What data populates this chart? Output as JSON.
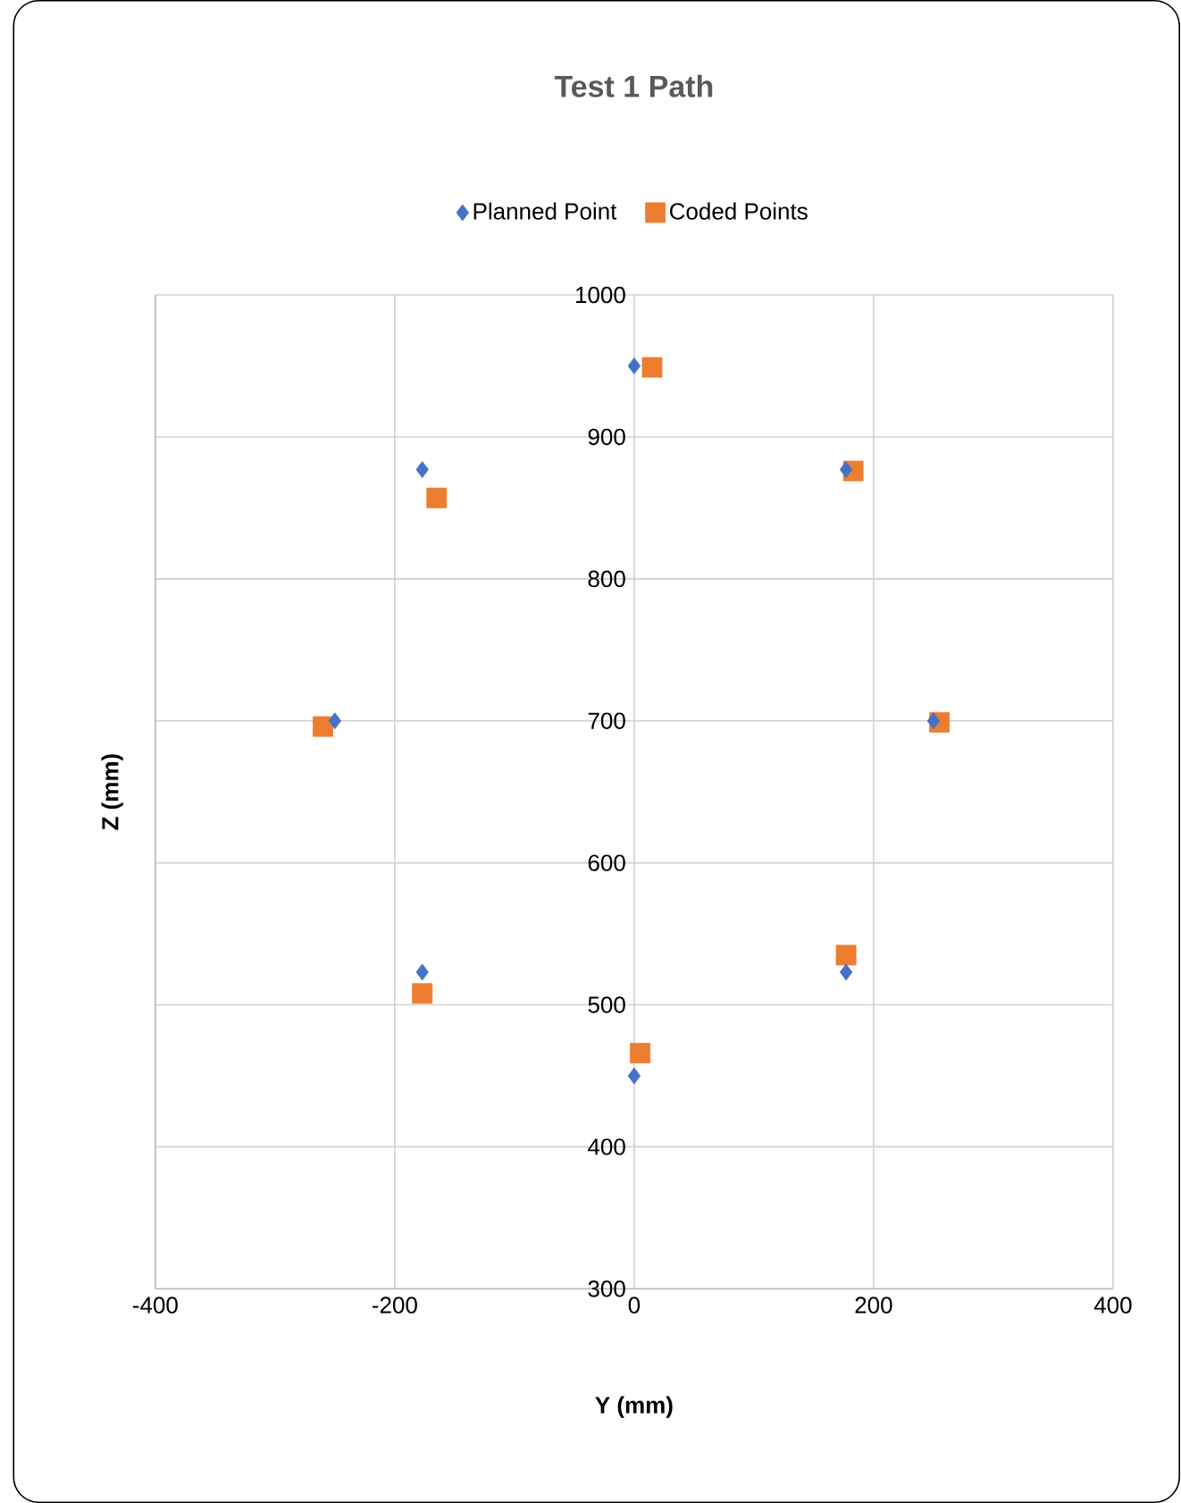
{
  "chart_data": {
    "type": "scatter",
    "title": "Test 1 Path",
    "xlabel": "Y (mm)",
    "ylabel": "Z (mm)",
    "xlim": [
      -400,
      400
    ],
    "xticks": [
      -400,
      -200,
      0,
      200,
      400
    ],
    "ylim": [
      300,
      1000
    ],
    "yticks": [
      300,
      400,
      500,
      600,
      700,
      800,
      900,
      1000
    ],
    "grid": true,
    "legend": "top",
    "series": [
      {
        "name": "Planned Point",
        "color": "#4472c4",
        "marker": "diamond",
        "x": [
          0,
          177,
          250,
          177,
          0,
          -177,
          -250,
          -177
        ],
        "values": [
          950,
          877,
          700,
          523,
          450,
          523,
          700,
          877
        ]
      },
      {
        "name": "Coded Points",
        "color": "#ed7d31",
        "marker": "square",
        "x": [
          15,
          183,
          255,
          177,
          5,
          -177,
          -260,
          -165
        ],
        "values": [
          949,
          876,
          699,
          535,
          466,
          508,
          696,
          857
        ]
      }
    ]
  }
}
